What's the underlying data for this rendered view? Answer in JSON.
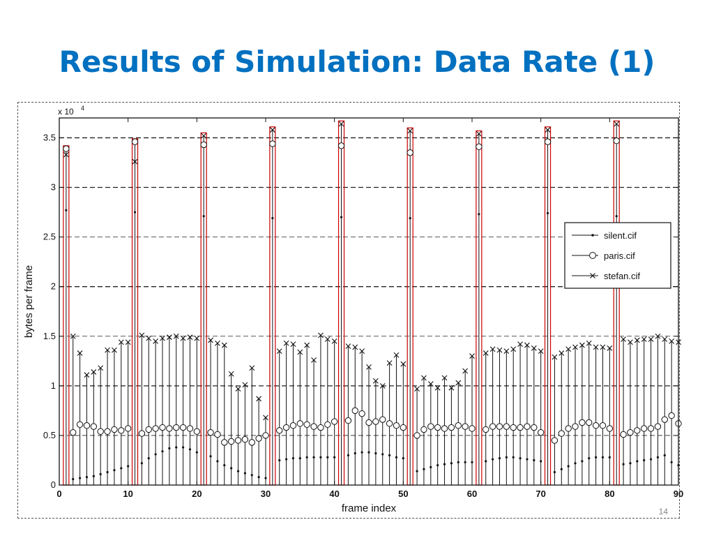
{
  "slide": {
    "title": "Results of Simulation: Data Rate (1)",
    "page_number": "14"
  },
  "chart_data": {
    "type": "scatter",
    "style": "stem",
    "title": "",
    "xlabel": "frame index",
    "ylabel": "bytes per frame",
    "exponent_label": "x 10",
    "exponent_power": "4",
    "xlim": [
      0,
      90
    ],
    "ylim": [
      0,
      3.7
    ],
    "x_ticks": [
      0,
      10,
      20,
      30,
      40,
      50,
      60,
      70,
      80,
      90
    ],
    "y_ticks": [
      0,
      0.5,
      1,
      1.5,
      2,
      2.5,
      3,
      3.5
    ],
    "y_tick_labels": [
      "0",
      "0.5",
      "1",
      "1.5",
      "2",
      "2.5",
      "3",
      "3.5"
    ],
    "grid": "horizontal dashed",
    "legend_position": "right",
    "highlighted_frames": [
      1,
      11,
      21,
      31,
      41,
      51,
      61,
      71,
      81
    ],
    "highlight_color": "#cc0000",
    "series": [
      {
        "name": "silent.cif",
        "marker": "dot",
        "x": [
          1,
          2,
          3,
          4,
          5,
          6,
          7,
          8,
          9,
          10,
          11,
          12,
          13,
          14,
          15,
          16,
          17,
          18,
          19,
          20,
          21,
          22,
          23,
          24,
          25,
          26,
          27,
          28,
          29,
          30,
          31,
          32,
          33,
          34,
          35,
          36,
          37,
          38,
          39,
          40,
          41,
          42,
          43,
          44,
          45,
          46,
          47,
          48,
          49,
          50,
          51,
          52,
          53,
          54,
          55,
          56,
          57,
          58,
          59,
          60,
          61,
          62,
          63,
          64,
          65,
          66,
          67,
          68,
          69,
          70,
          71,
          72,
          73,
          74,
          75,
          76,
          77,
          78,
          79,
          80,
          81,
          82,
          83,
          84,
          85,
          86,
          87,
          88,
          89,
          90
        ],
        "values": [
          2.77,
          0.06,
          0.07,
          0.08,
          0.09,
          0.11,
          0.13,
          0.15,
          0.17,
          0.19,
          2.75,
          0.22,
          0.27,
          0.31,
          0.34,
          0.37,
          0.38,
          0.38,
          0.36,
          0.33,
          2.71,
          0.29,
          0.24,
          0.2,
          0.17,
          0.14,
          0.12,
          0.1,
          0.08,
          0.07,
          2.69,
          0.25,
          0.26,
          0.27,
          0.27,
          0.28,
          0.28,
          0.28,
          0.28,
          0.28,
          2.7,
          0.3,
          0.32,
          0.33,
          0.33,
          0.32,
          0.31,
          0.3,
          0.28,
          0.27,
          2.69,
          0.14,
          0.16,
          0.18,
          0.2,
          0.21,
          0.22,
          0.23,
          0.23,
          0.23,
          2.73,
          0.24,
          0.26,
          0.27,
          0.28,
          0.28,
          0.27,
          0.26,
          0.25,
          0.24,
          2.74,
          0.13,
          0.16,
          0.19,
          0.22,
          0.24,
          0.27,
          0.28,
          0.28,
          0.28,
          2.71,
          0.21,
          0.22,
          0.24,
          0.25,
          0.26,
          0.28,
          0.3,
          0.23,
          0.2
        ]
      },
      {
        "name": "paris.cif",
        "marker": "circle",
        "x": [
          1,
          2,
          3,
          4,
          5,
          6,
          7,
          8,
          9,
          10,
          11,
          12,
          13,
          14,
          15,
          16,
          17,
          18,
          19,
          20,
          21,
          22,
          23,
          24,
          25,
          26,
          27,
          28,
          29,
          30,
          31,
          32,
          33,
          34,
          35,
          36,
          37,
          38,
          39,
          40,
          41,
          42,
          43,
          44,
          45,
          46,
          47,
          48,
          49,
          50,
          51,
          52,
          53,
          54,
          55,
          56,
          57,
          58,
          59,
          60,
          61,
          62,
          63,
          64,
          65,
          66,
          67,
          68,
          69,
          70,
          71,
          72,
          73,
          74,
          75,
          76,
          77,
          78,
          79,
          80,
          81,
          82,
          83,
          84,
          85,
          86,
          87,
          88,
          89,
          90
        ],
        "values": [
          3.39,
          0.53,
          0.61,
          0.6,
          0.59,
          0.54,
          0.54,
          0.56,
          0.55,
          0.57,
          3.46,
          0.52,
          0.56,
          0.57,
          0.58,
          0.57,
          0.58,
          0.58,
          0.57,
          0.54,
          3.43,
          0.53,
          0.51,
          0.43,
          0.44,
          0.45,
          0.46,
          0.43,
          0.47,
          0.5,
          3.44,
          0.55,
          0.58,
          0.6,
          0.62,
          0.61,
          0.59,
          0.58,
          0.61,
          0.64,
          3.42,
          0.65,
          0.75,
          0.72,
          0.63,
          0.64,
          0.66,
          0.62,
          0.6,
          0.58,
          3.35,
          0.5,
          0.56,
          0.59,
          0.58,
          0.57,
          0.58,
          0.6,
          0.59,
          0.57,
          3.41,
          0.56,
          0.59,
          0.59,
          0.59,
          0.58,
          0.58,
          0.59,
          0.58,
          0.53,
          3.46,
          0.45,
          0.52,
          0.57,
          0.59,
          0.63,
          0.63,
          0.6,
          0.6,
          0.57,
          3.47,
          0.51,
          0.53,
          0.55,
          0.57,
          0.57,
          0.59,
          0.66,
          0.7,
          0.62
        ]
      },
      {
        "name": "stefan.cif",
        "marker": "x",
        "x": [
          1,
          2,
          3,
          4,
          5,
          6,
          7,
          8,
          9,
          10,
          11,
          12,
          13,
          14,
          15,
          16,
          17,
          18,
          19,
          20,
          21,
          22,
          23,
          24,
          25,
          26,
          27,
          28,
          29,
          30,
          31,
          32,
          33,
          34,
          35,
          36,
          37,
          38,
          39,
          40,
          41,
          42,
          43,
          44,
          45,
          46,
          47,
          48,
          49,
          50,
          51,
          52,
          53,
          54,
          55,
          56,
          57,
          58,
          59,
          60,
          61,
          62,
          63,
          64,
          65,
          66,
          67,
          68,
          69,
          70,
          71,
          72,
          73,
          74,
          75,
          76,
          77,
          78,
          79,
          80,
          81,
          82,
          83,
          84,
          85,
          86,
          87,
          88,
          89,
          90
        ],
        "values": [
          3.33,
          1.5,
          1.33,
          1.11,
          1.14,
          1.18,
          1.36,
          1.36,
          1.44,
          1.44,
          3.26,
          1.51,
          1.48,
          1.45,
          1.48,
          1.49,
          1.5,
          1.48,
          1.49,
          1.48,
          3.52,
          1.46,
          1.43,
          1.41,
          1.12,
          0.97,
          1.01,
          1.18,
          0.87,
          0.68,
          3.58,
          1.35,
          1.43,
          1.42,
          1.34,
          1.41,
          1.26,
          1.51,
          1.47,
          1.45,
          3.64,
          1.4,
          1.39,
          1.35,
          1.19,
          1.05,
          1.0,
          1.23,
          1.31,
          1.22,
          3.57,
          0.97,
          1.08,
          1.02,
          0.98,
          1.08,
          0.98,
          1.03,
          1.15,
          1.3,
          3.54,
          1.33,
          1.37,
          1.36,
          1.35,
          1.37,
          1.42,
          1.41,
          1.38,
          1.35,
          3.58,
          1.29,
          1.33,
          1.37,
          1.39,
          1.41,
          1.43,
          1.39,
          1.39,
          1.38,
          3.64,
          1.47,
          1.44,
          1.46,
          1.47,
          1.47,
          1.5,
          1.47,
          1.45,
          1.44
        ]
      }
    ]
  }
}
